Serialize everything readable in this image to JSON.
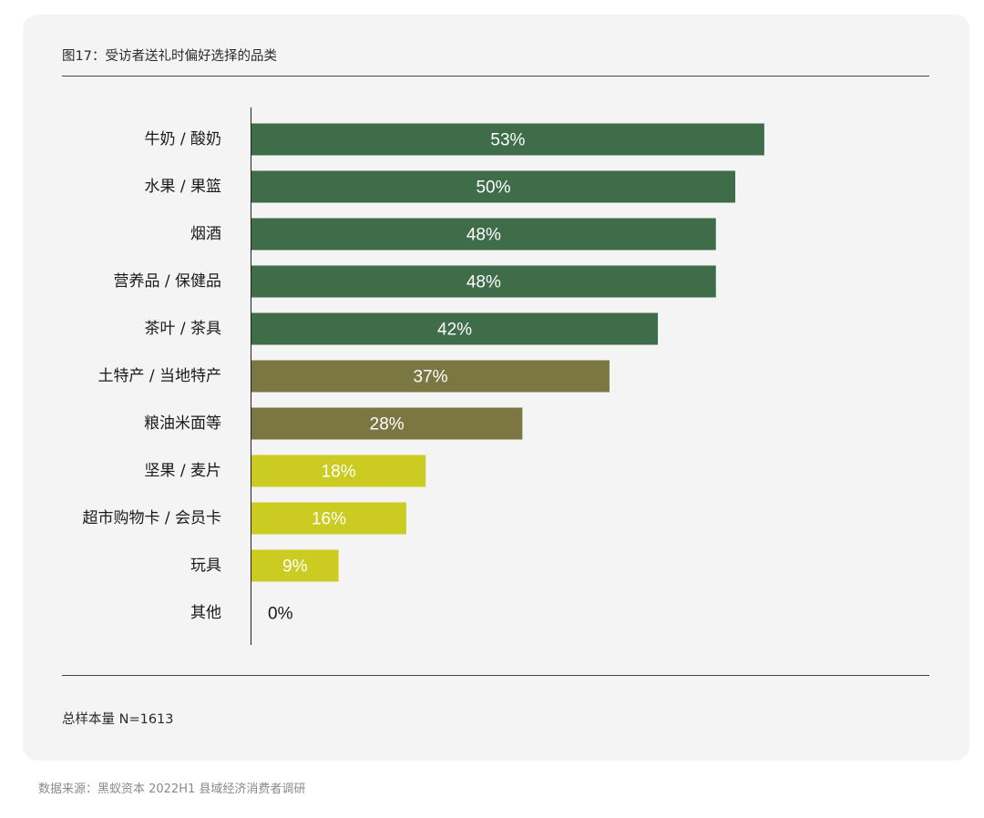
{
  "title": "图17：受访者送礼时偏好选择的品类",
  "note": "总样本量 N=1613",
  "source": "数据来源：黑蚁资本 2022H1 县域经济消费者调研",
  "colors": {
    "card_bg": "#f4f4f4",
    "dark_green": "#3f6d4a",
    "olive": "#7a7743",
    "lime": "#cbcb22",
    "label_text": "#1a1a1a",
    "bar_label_text": "#ffffff"
  },
  "chart_data": {
    "type": "bar",
    "orientation": "horizontal",
    "title": "图17：受访者送礼时偏好选择的品类",
    "categories": [
      "牛奶 / 酸奶",
      "水果 / 果篮",
      "烟酒",
      "营养品 / 保健品",
      "茶叶 / 茶具",
      "土特产 / 当地特产",
      "粮油米面等",
      "坚果 / 麦片",
      "超市购物卡 / 会员卡",
      "玩具",
      "其他"
    ],
    "values": [
      53,
      50,
      48,
      48,
      42,
      37,
      28,
      18,
      16,
      9,
      0
    ],
    "value_labels": [
      "53%",
      "50%",
      "48%",
      "48%",
      "42%",
      "37%",
      "28%",
      "18%",
      "16%",
      "9%",
      "0%"
    ],
    "bar_color_groups": [
      "dark_green",
      "dark_green",
      "dark_green",
      "dark_green",
      "dark_green",
      "olive",
      "olive",
      "lime",
      "lime",
      "lime",
      "lime"
    ],
    "xlim": [
      0,
      100
    ],
    "grid": false,
    "legend": "none"
  }
}
